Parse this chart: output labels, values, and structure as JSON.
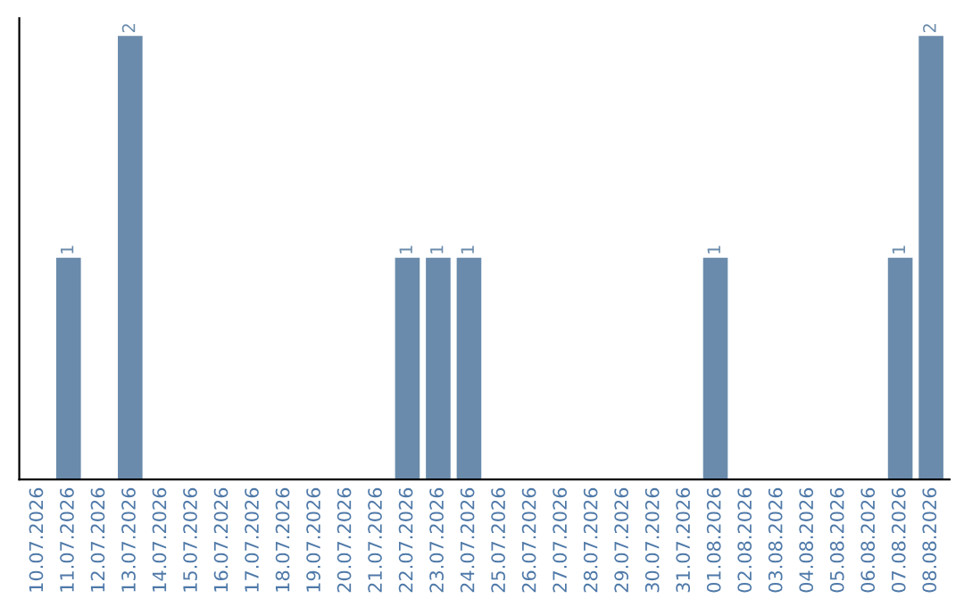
{
  "chart_data": {
    "type": "bar",
    "categories": [
      "10.07.2026",
      "11.07.2026",
      "12.07.2026",
      "13.07.2026",
      "14.07.2026",
      "15.07.2026",
      "16.07.2026",
      "17.07.2026",
      "18.07.2026",
      "19.07.2026",
      "20.07.2026",
      "21.07.2026",
      "22.07.2026",
      "23.07.2026",
      "24.07.2026",
      "25.07.2026",
      "26.07.2026",
      "27.07.2026",
      "28.07.2026",
      "29.07.2026",
      "30.07.2026",
      "31.07.2026",
      "01.08.2026",
      "02.08.2026",
      "03.08.2026",
      "04.08.2026",
      "05.08.2026",
      "06.08.2026",
      "07.08.2026",
      "08.08.2026"
    ],
    "values": [
      0,
      1,
      0,
      2,
      0,
      0,
      0,
      0,
      0,
      0,
      0,
      0,
      1,
      1,
      1,
      0,
      0,
      0,
      0,
      0,
      0,
      0,
      1,
      0,
      0,
      0,
      0,
      0,
      1,
      2
    ],
    "value_labels": [
      null,
      "1",
      null,
      "2",
      null,
      null,
      null,
      null,
      null,
      null,
      null,
      null,
      "1",
      "1",
      "1",
      null,
      null,
      null,
      null,
      null,
      null,
      null,
      "1",
      null,
      null,
      null,
      null,
      null,
      "1",
      "2"
    ],
    "color": "#6a8bab",
    "grid": false,
    "legend": false,
    "tick_labels": "x"
  }
}
